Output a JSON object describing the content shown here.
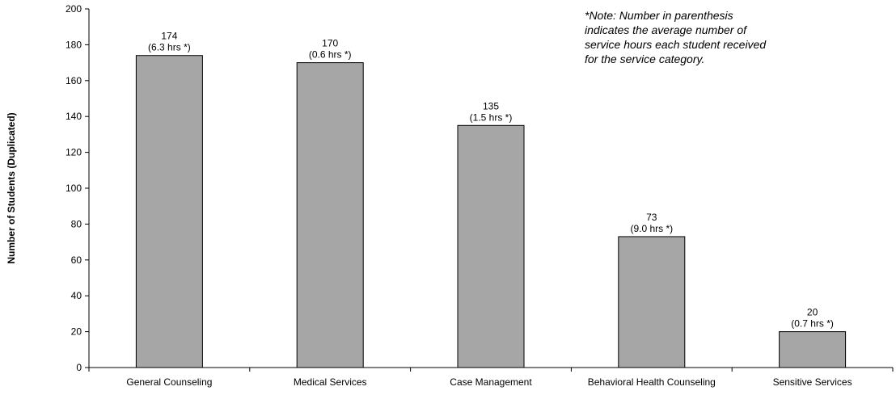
{
  "chart_data": {
    "type": "bar",
    "title": "",
    "xlabel": "",
    "ylabel": "Number of Students (Duplicated)",
    "ylim": [
      0,
      200
    ],
    "yticks": [
      0,
      20,
      40,
      60,
      80,
      100,
      120,
      140,
      160,
      180,
      200
    ],
    "categories": [
      "General Counseling",
      "Medical Services",
      "Case Management",
      "Behavioral Health Counseling",
      "Sensitive Services"
    ],
    "values": [
      174,
      170,
      135,
      73,
      20
    ],
    "value_labels": [
      "174",
      "170",
      "135",
      "73",
      "20"
    ],
    "hours_labels": [
      "(6.3 hrs *)",
      "(0.6 hrs *)",
      "(1.5 hrs *)",
      "(9.0 hrs *)",
      "(0.7 hrs *)"
    ],
    "note_lines": [
      "*Note: Number in parenthesis",
      "indicates the average number of",
      "service hours each student received",
      "for the service category."
    ],
    "grid": false,
    "legend": "none",
    "colors": {
      "bar_fill": "#a6a6a6",
      "bar_stroke": "#000000",
      "axis": "#000000"
    }
  }
}
